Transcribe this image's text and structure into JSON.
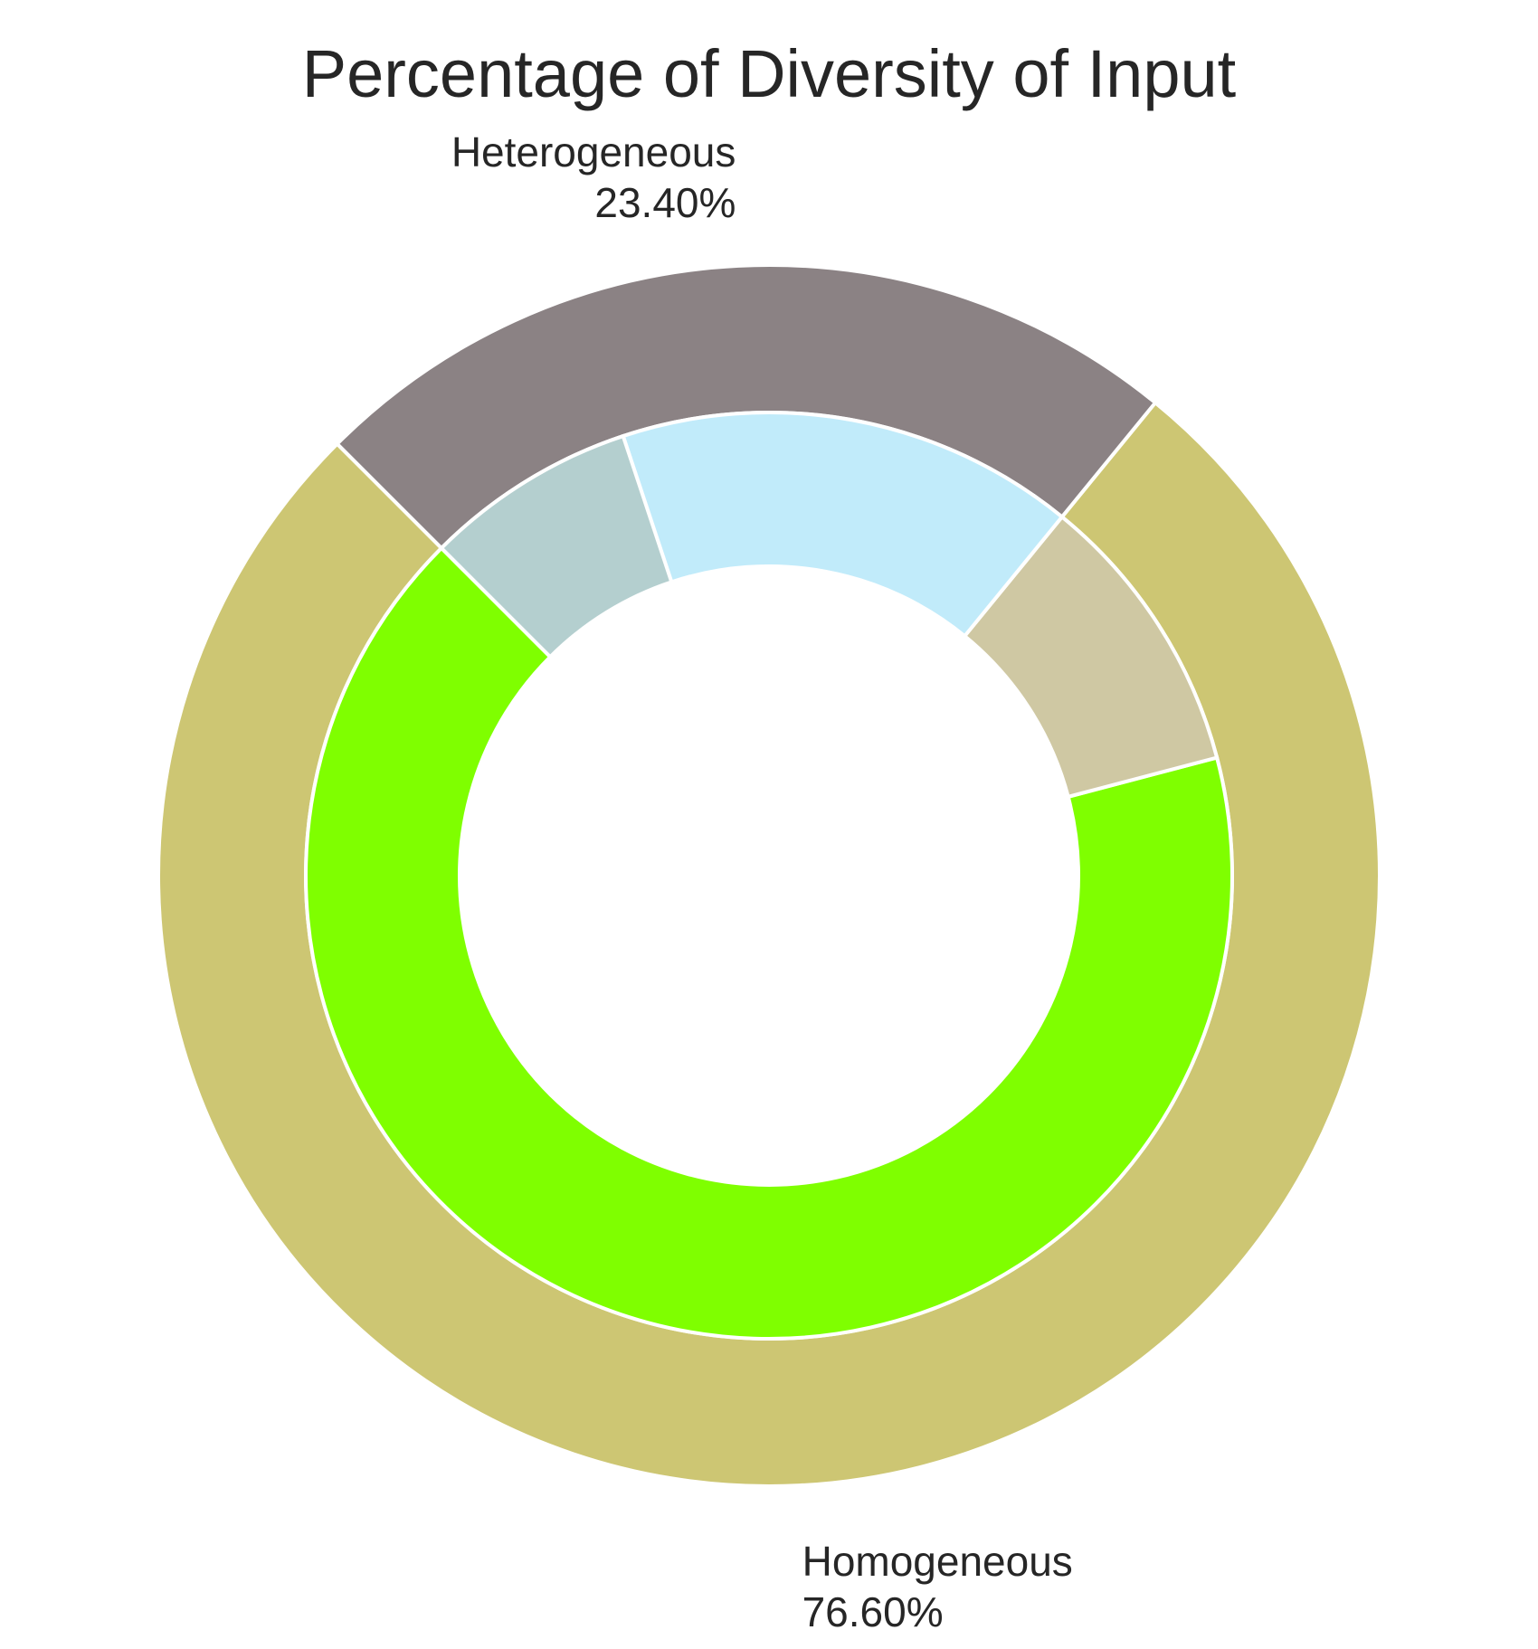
{
  "chart_data": {
    "type": "pie",
    "variant": "nested-donut",
    "title": "Percentage of Diversity of Input",
    "outer_ring": {
      "categories": [
        "Homogeneous",
        "Heterogeneous"
      ],
      "values": [
        76.6,
        23.4
      ],
      "value_labels": [
        "76.60%",
        "23.40%"
      ],
      "colors": [
        "#cdc673",
        "#8b8284"
      ]
    },
    "inner_ring": {
      "values": [
        66.6,
        10.0,
        16.0,
        7.4
      ],
      "colors": [
        "#7fff00",
        "#cfc8a3",
        "#c1ebfa",
        "#b4cfcf"
      ],
      "parent": [
        "Homogeneous",
        "Homogeneous",
        "Heterogeneous",
        "Heterogeneous"
      ]
    },
    "start_angle_deg": 135,
    "direction": "counterclockwise",
    "wedge_edge_color": "#ffffff"
  }
}
